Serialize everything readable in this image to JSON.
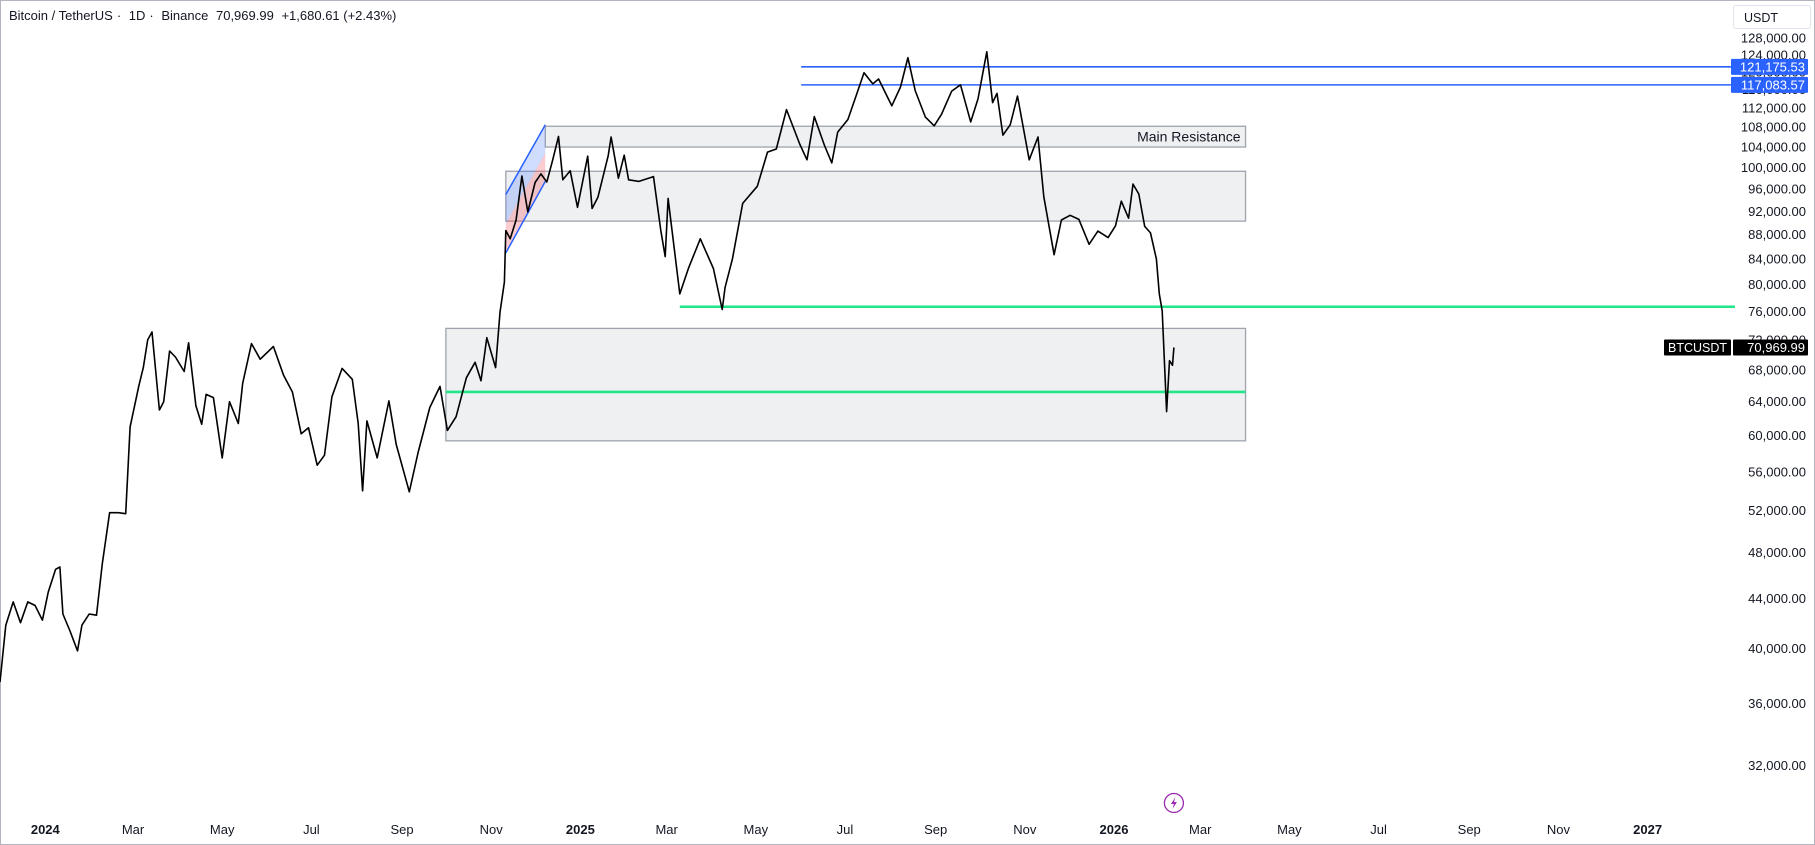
{
  "header": {
    "symbol": "Bitcoin / TetherUS",
    "interval": "1D",
    "exchange": "Binance",
    "last": "70,969.99",
    "change": "+1,680.61 (+2.43%)",
    "currency": "USDT"
  },
  "chart_data": {
    "type": "line",
    "title": "Bitcoin / TetherUS · 1D · Binance",
    "y_scale": "log",
    "ylim": [
      29500,
      133000
    ],
    "xlim": [
      "2023-12-01",
      "2027-02-25"
    ],
    "y_ticks": [
      "128,000.00",
      "124,000.00",
      "120,000.00",
      "116,000.00",
      "112,000.00",
      "108,000.00",
      "104,000.00",
      "100,000.00",
      "96,000.00",
      "92,000.00",
      "88,000.00",
      "84,000.00",
      "80,000.00",
      "76,000.00",
      "72,000.00",
      "68,000.00",
      "64,000.00",
      "60,000.00",
      "56,000.00",
      "52,000.00",
      "48,000.00",
      "44,000.00",
      "40,000.00",
      "36,000.00",
      "32,000.00"
    ],
    "x_ticks": [
      {
        "label": "2024",
        "date": "2024-01-01",
        "year": true
      },
      {
        "label": "Mar",
        "date": "2024-03-01"
      },
      {
        "label": "May",
        "date": "2024-05-01"
      },
      {
        "label": "Jul",
        "date": "2024-07-01"
      },
      {
        "label": "Sep",
        "date": "2024-09-01"
      },
      {
        "label": "Nov",
        "date": "2024-11-01"
      },
      {
        "label": "2025",
        "date": "2025-01-01",
        "year": true
      },
      {
        "label": "Mar",
        "date": "2025-03-01"
      },
      {
        "label": "May",
        "date": "2025-05-01"
      },
      {
        "label": "Jul",
        "date": "2025-07-01"
      },
      {
        "label": "Sep",
        "date": "2025-09-01"
      },
      {
        "label": "Nov",
        "date": "2025-11-01"
      },
      {
        "label": "2026",
        "date": "2026-01-01",
        "year": true
      },
      {
        "label": "Mar",
        "date": "2026-03-01"
      },
      {
        "label": "May",
        "date": "2026-05-01"
      },
      {
        "label": "Jul",
        "date": "2026-07-01"
      },
      {
        "label": "Sep",
        "date": "2026-09-01"
      },
      {
        "label": "Nov",
        "date": "2026-11-01"
      },
      {
        "label": "2027",
        "date": "2027-01-01",
        "year": true
      }
    ],
    "series": [
      {
        "name": "BTCUSDT",
        "color": "#000000",
        "points": [
          [
            "2023-12-01",
            37500
          ],
          [
            "2023-12-05",
            41800
          ],
          [
            "2023-12-10",
            43700
          ],
          [
            "2023-12-15",
            42000
          ],
          [
            "2023-12-20",
            43700
          ],
          [
            "2023-12-25",
            43400
          ],
          [
            "2023-12-30",
            42200
          ],
          [
            "2024-01-03",
            44500
          ],
          [
            "2024-01-08",
            46500
          ],
          [
            "2024-01-11",
            46700
          ],
          [
            "2024-01-13",
            42700
          ],
          [
            "2024-01-18",
            41300
          ],
          [
            "2024-01-23",
            39800
          ],
          [
            "2024-01-26",
            41800
          ],
          [
            "2024-01-31",
            42700
          ],
          [
            "2024-02-05",
            42600
          ],
          [
            "2024-02-09",
            47000
          ],
          [
            "2024-02-14",
            51800
          ],
          [
            "2024-02-20",
            51800
          ],
          [
            "2024-02-25",
            51700
          ],
          [
            "2024-02-28",
            61000
          ],
          [
            "2024-03-05",
            66000
          ],
          [
            "2024-03-08",
            68300
          ],
          [
            "2024-03-11",
            72000
          ],
          [
            "2024-03-14",
            73100
          ],
          [
            "2024-03-19",
            63000
          ],
          [
            "2024-03-22",
            64000
          ],
          [
            "2024-03-26",
            70500
          ],
          [
            "2024-03-30",
            69700
          ],
          [
            "2024-04-05",
            67800
          ],
          [
            "2024-04-08",
            71600
          ],
          [
            "2024-04-13",
            63500
          ],
          [
            "2024-04-17",
            61300
          ],
          [
            "2024-04-20",
            64900
          ],
          [
            "2024-04-25",
            64500
          ],
          [
            "2024-05-01",
            57500
          ],
          [
            "2024-05-06",
            64000
          ],
          [
            "2024-05-12",
            61400
          ],
          [
            "2024-05-15",
            66300
          ],
          [
            "2024-05-21",
            71500
          ],
          [
            "2024-05-27",
            69400
          ],
          [
            "2024-06-05",
            71100
          ],
          [
            "2024-06-12",
            67300
          ],
          [
            "2024-06-18",
            65200
          ],
          [
            "2024-06-24",
            60200
          ],
          [
            "2024-06-29",
            60900
          ],
          [
            "2024-07-05",
            56700
          ],
          [
            "2024-07-10",
            57800
          ],
          [
            "2024-07-15",
            64600
          ],
          [
            "2024-07-22",
            68200
          ],
          [
            "2024-07-29",
            66800
          ],
          [
            "2024-08-02",
            61400
          ],
          [
            "2024-08-05",
            54000
          ],
          [
            "2024-08-08",
            61700
          ],
          [
            "2024-08-15",
            57500
          ],
          [
            "2024-08-23",
            64100
          ],
          [
            "2024-08-28",
            59000
          ],
          [
            "2024-09-06",
            53900
          ],
          [
            "2024-09-12",
            58100
          ],
          [
            "2024-09-20",
            63300
          ],
          [
            "2024-09-27",
            65900
          ],
          [
            "2024-10-02",
            60600
          ],
          [
            "2024-10-08",
            62200
          ],
          [
            "2024-10-15",
            67000
          ],
          [
            "2024-10-21",
            69000
          ],
          [
            "2024-10-25",
            66600
          ],
          [
            "2024-10-29",
            72300
          ],
          [
            "2024-11-04",
            68300
          ],
          [
            "2024-11-07",
            75900
          ],
          [
            "2024-11-10",
            80400
          ],
          [
            "2024-11-11",
            88700
          ],
          [
            "2024-11-14",
            87300
          ],
          [
            "2024-11-18",
            90500
          ],
          [
            "2024-11-22",
            98400
          ],
          [
            "2024-11-26",
            91900
          ],
          [
            "2024-12-01",
            97200
          ],
          [
            "2024-12-05",
            98800
          ],
          [
            "2024-12-09",
            97300
          ],
          [
            "2024-12-13",
            101400
          ],
          [
            "2024-12-17",
            106100
          ],
          [
            "2024-12-20",
            97700
          ],
          [
            "2024-12-25",
            99400
          ],
          [
            "2024-12-30",
            92700
          ],
          [
            "2025-01-06",
            102200
          ],
          [
            "2025-01-09",
            92500
          ],
          [
            "2025-01-13",
            94500
          ],
          [
            "2025-01-20",
            102300
          ],
          [
            "2025-01-22",
            106000
          ],
          [
            "2025-01-27",
            98000
          ],
          [
            "2025-01-31",
            102400
          ],
          [
            "2025-02-03",
            97700
          ],
          [
            "2025-02-10",
            97400
          ],
          [
            "2025-02-20",
            98300
          ],
          [
            "2025-02-25",
            88700
          ],
          [
            "2025-02-28",
            84400
          ],
          [
            "2025-03-02",
            94300
          ],
          [
            "2025-03-10",
            78600
          ],
          [
            "2025-03-16",
            82600
          ],
          [
            "2025-03-24",
            87300
          ],
          [
            "2025-04-02",
            82500
          ],
          [
            "2025-04-08",
            76300
          ],
          [
            "2025-04-10",
            79600
          ],
          [
            "2025-04-15",
            84000
          ],
          [
            "2025-04-22",
            93400
          ],
          [
            "2025-05-02",
            96500
          ],
          [
            "2025-05-09",
            103000
          ],
          [
            "2025-05-15",
            103600
          ],
          [
            "2025-05-22",
            111700
          ],
          [
            "2025-05-31",
            104600
          ],
          [
            "2025-06-05",
            101500
          ],
          [
            "2025-06-10",
            110200
          ],
          [
            "2025-06-17",
            104300
          ],
          [
            "2025-06-22",
            100900
          ],
          [
            "2025-06-26",
            107000
          ],
          [
            "2025-07-03",
            109600
          ],
          [
            "2025-07-10",
            116000
          ],
          [
            "2025-07-14",
            119800
          ],
          [
            "2025-07-20",
            117300
          ],
          [
            "2025-07-24",
            118400
          ],
          [
            "2025-08-02",
            112500
          ],
          [
            "2025-08-08",
            116600
          ],
          [
            "2025-08-13",
            123300
          ],
          [
            "2025-08-18",
            115800
          ],
          [
            "2025-08-25",
            110100
          ],
          [
            "2025-08-31",
            108300
          ],
          [
            "2025-09-05",
            110700
          ],
          [
            "2025-09-12",
            115700
          ],
          [
            "2025-09-18",
            117100
          ],
          [
            "2025-09-25",
            109100
          ],
          [
            "2025-09-30",
            114000
          ],
          [
            "2025-10-06",
            124700
          ],
          [
            "2025-10-10",
            113200
          ],
          [
            "2025-10-13",
            115200
          ],
          [
            "2025-10-17",
            106400
          ],
          [
            "2025-10-22",
            108500
          ],
          [
            "2025-10-27",
            114600
          ],
          [
            "2025-11-04",
            101500
          ],
          [
            "2025-11-10",
            106000
          ],
          [
            "2025-11-14",
            94600
          ],
          [
            "2025-11-21",
            84700
          ],
          [
            "2025-11-26",
            90500
          ],
          [
            "2025-12-02",
            91300
          ],
          [
            "2025-12-08",
            90600
          ],
          [
            "2025-12-15",
            86400
          ],
          [
            "2025-12-21",
            88600
          ],
          [
            "2025-12-28",
            87500
          ],
          [
            "2026-01-02",
            89500
          ],
          [
            "2026-01-06",
            93800
          ],
          [
            "2026-01-11",
            90800
          ],
          [
            "2026-01-14",
            96900
          ],
          [
            "2026-01-18",
            95100
          ],
          [
            "2026-01-22",
            89400
          ],
          [
            "2026-01-26",
            88300
          ],
          [
            "2026-01-30",
            84000
          ],
          [
            "2026-02-01",
            78600
          ],
          [
            "2026-02-03",
            76100
          ],
          [
            "2026-02-06",
            62800
          ],
          [
            "2026-02-08",
            69200
          ],
          [
            "2026-02-10",
            68600
          ],
          [
            "2026-02-11",
            70970
          ]
        ]
      }
    ],
    "zones": [
      {
        "name": "zone-upper",
        "x_start": "2024-12-08",
        "x_end": "2026-04-01",
        "y_low": 104000,
        "y_high": 108200,
        "label": "Main Resistance"
      },
      {
        "name": "zone-middle",
        "x_start": "2024-11-11",
        "x_end": "2026-04-01",
        "y_low": 90300,
        "y_high": 99300,
        "label": ""
      },
      {
        "name": "zone-lower",
        "x_start": "2024-10-01",
        "x_end": "2026-04-01",
        "y_low": 59400,
        "y_high": 73600,
        "label": ""
      }
    ],
    "channel": {
      "color": "#2962ff",
      "lower": [
        [
          "2024-11-11",
          85000
        ],
        [
          "2024-12-08",
          97400
        ]
      ],
      "upper": [
        [
          "2024-11-11",
          95000
        ],
        [
          "2024-12-08",
          108500
        ]
      ]
    },
    "levels": [
      {
        "name": "support-green-upper",
        "value": 76700,
        "x_start": "2025-03-10",
        "color": "#22e58a",
        "show_label": false
      },
      {
        "name": "support-green-lower",
        "value": 65200,
        "x_start": "2024-10-01",
        "x_end": "2026-04-01",
        "color": "#22e58a",
        "show_label": false
      },
      {
        "name": "resistance-blue-upper",
        "value": 121175.53,
        "x_start": "2025-06-01",
        "color": "#2962ff",
        "label": "121,175.53",
        "show_label": true
      },
      {
        "name": "resistance-blue-lower",
        "value": 117083.57,
        "x_start": "2025-06-01",
        "color": "#2962ff",
        "label": "117,083.57",
        "show_label": true
      }
    ],
    "last_price": {
      "value": 70969.99,
      "label": "70,969.99",
      "symbol": "BTCUSDT"
    },
    "grid": false,
    "legend": "none"
  },
  "icons": {
    "event_marker": "lightning-icon"
  }
}
